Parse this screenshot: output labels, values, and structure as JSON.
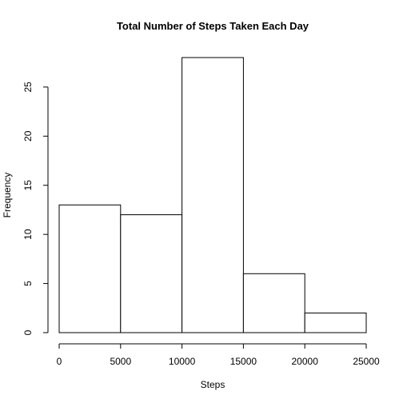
{
  "chart_data": {
    "type": "bar",
    "subtype": "histogram",
    "title": "Total Number of Steps Taken Each Day",
    "xlabel": "Steps",
    "ylabel": "Frequency",
    "bins": [
      {
        "from": 0,
        "to": 5000,
        "count": 13
      },
      {
        "from": 5000,
        "to": 10000,
        "count": 12
      },
      {
        "from": 10000,
        "to": 15000,
        "count": 28
      },
      {
        "from": 15000,
        "to": 20000,
        "count": 6
      },
      {
        "from": 20000,
        "to": 25000,
        "count": 2
      }
    ],
    "x_ticks": [
      "0",
      "5000",
      "10000",
      "15000",
      "20000",
      "25000"
    ],
    "x_tick_values": [
      0,
      5000,
      10000,
      15000,
      20000,
      25000
    ],
    "y_ticks": [
      "0",
      "5",
      "10",
      "15",
      "20",
      "25"
    ],
    "y_tick_values": [
      0,
      5,
      10,
      15,
      20,
      25
    ],
    "xlim": [
      0,
      25000
    ],
    "ylim": [
      0,
      28
    ],
    "grid": false,
    "legend": "none",
    "bar_fill": "#ffffff",
    "bar_stroke": "#000000"
  }
}
